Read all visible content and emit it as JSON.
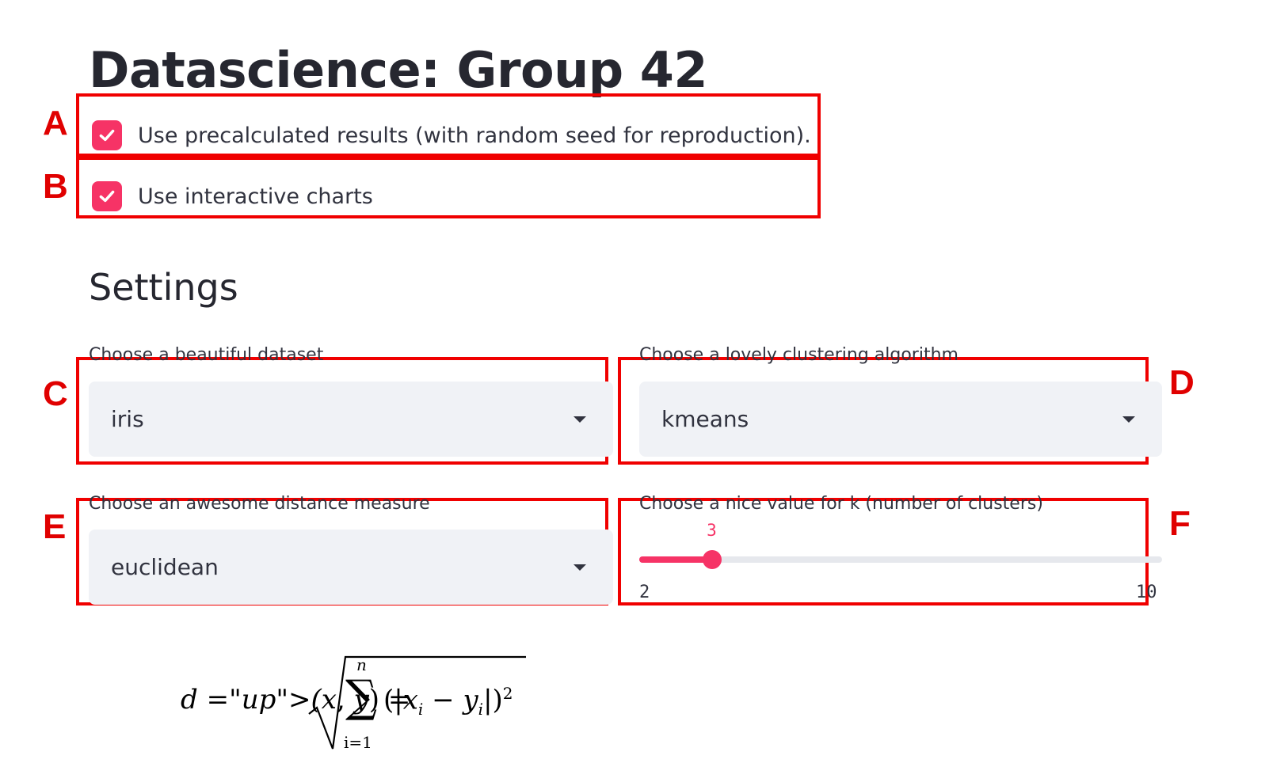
{
  "title": "Datascience: Group 42",
  "annotations": [
    "A",
    "B",
    "C",
    "D",
    "E",
    "F"
  ],
  "checkboxes": [
    {
      "label": "Use precalculated results (with random seed for reproduction).",
      "checked": true
    },
    {
      "label": "Use interactive charts",
      "checked": true
    }
  ],
  "settings": {
    "heading": "Settings",
    "dataset": {
      "label": "Choose a beautiful dataset",
      "value": "iris"
    },
    "algorithm": {
      "label": "Choose a lovely clustering algorithm",
      "value": "kmeans"
    },
    "distance": {
      "label": "Choose an awesome distance measure",
      "value": "euclidean"
    },
    "k_slider": {
      "label": "Choose a nice value for k (number of clusters)",
      "value": 3,
      "min": 2,
      "max": 10
    }
  },
  "formula": {
    "lhs": "d(x, y) =",
    "sum_upper": "n",
    "sum_lower": "i=1",
    "body": "(|x_i − y_i|)^2"
  },
  "colors": {
    "accent": "#f63366",
    "annotation": "#f00000",
    "select_bg": "#f0f2f6"
  }
}
